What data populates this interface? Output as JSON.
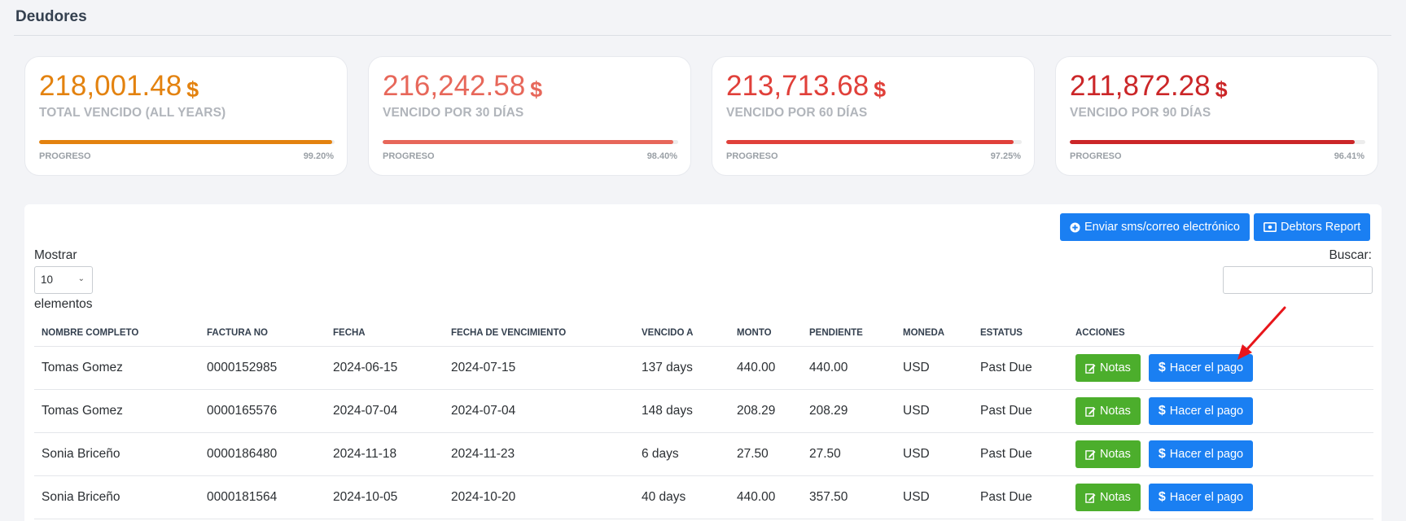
{
  "page": {
    "title": "Deudores"
  },
  "cards": [
    {
      "amount": "218,001.48",
      "currency": "$",
      "label": "TOTAL VENCIDO (ALL YEARS)",
      "progress_label": "PROGRESO",
      "progress_text": "99.20%",
      "progress": 99.2,
      "color": "#e3820f"
    },
    {
      "amount": "216,242.58",
      "currency": "$",
      "label": "VENCIDO POR 30 DÍAS",
      "progress_label": "PROGRESO",
      "progress_text": "98.40%",
      "progress": 98.4,
      "color": "#e7675a"
    },
    {
      "amount": "213,713.68",
      "currency": "$",
      "label": "VENCIDO POR 60 DÍAS",
      "progress_label": "PROGRESO",
      "progress_text": "97.25%",
      "progress": 97.25,
      "color": "#e0403a"
    },
    {
      "amount": "211,872.28",
      "currency": "$",
      "label": "VENCIDO POR 90 DÍAS",
      "progress_label": "PROGRESO",
      "progress_text": "96.41%",
      "progress": 96.41,
      "color": "#cb2628"
    }
  ],
  "toolbar": {
    "send_label": "Enviar sms/correo electrónico",
    "report_label": "Debtors Report"
  },
  "length": {
    "prefix": "Mostrar",
    "value": "10",
    "suffix": "elementos"
  },
  "search": {
    "label": "Buscar:",
    "value": ""
  },
  "table": {
    "columns": [
      "NOMBRE COMPLETO",
      "FACTURA NO",
      "FECHA",
      "FECHA DE VENCIMIENTO",
      "VENCIDO A",
      "MONTO",
      "PENDIENTE",
      "MONEDA",
      "ESTATUS",
      "ACCIONES"
    ],
    "notes_label": "Notas",
    "pay_label": "Hacer el pago",
    "rows": [
      {
        "name": "Tomas Gomez",
        "invoice": "0000152985",
        "date": "2024-06-15",
        "due_date": "2024-07-15",
        "overdue": "137 days",
        "amount": "440.00",
        "pending": "440.00",
        "currency": "USD",
        "status": "Past Due"
      },
      {
        "name": "Tomas Gomez",
        "invoice": "0000165576",
        "date": "2024-07-04",
        "due_date": "2024-07-04",
        "overdue": "148 days",
        "amount": "208.29",
        "pending": "208.29",
        "currency": "USD",
        "status": "Past Due"
      },
      {
        "name": "Sonia Briceño",
        "invoice": "0000186480",
        "date": "2024-11-18",
        "due_date": "2024-11-23",
        "overdue": "6 days",
        "amount": "27.50",
        "pending": "27.50",
        "currency": "USD",
        "status": "Past Due"
      },
      {
        "name": "Sonia Briceño",
        "invoice": "0000181564",
        "date": "2024-10-05",
        "due_date": "2024-10-20",
        "overdue": "40 days",
        "amount": "440.00",
        "pending": "357.50",
        "currency": "USD",
        "status": "Past Due"
      }
    ]
  },
  "annotation": {
    "arrow_color": "#e8161b"
  }
}
